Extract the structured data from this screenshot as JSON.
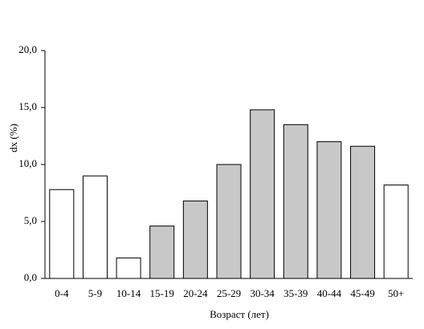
{
  "chart_data": {
    "type": "bar",
    "y_label": "dx (%)",
    "x_label": "Возраст (лет)",
    "categories": [
      "0-4",
      "5-9",
      "10-14",
      "15-19",
      "20-24",
      "25-29",
      "30-34",
      "35-39",
      "40-44",
      "45-49",
      "50+"
    ],
    "values": [
      7.8,
      9.0,
      1.8,
      4.6,
      6.8,
      10.0,
      14.8,
      13.5,
      12.0,
      11.6,
      8.2
    ],
    "colors": [
      "#ffffff",
      "#ffffff",
      "#ffffff",
      "#c8c8c8",
      "#c8c8c8",
      "#c8c8c8",
      "#c8c8c8",
      "#c8c8c8",
      "#c8c8c8",
      "#c8c8c8",
      "#ffffff"
    ],
    "ylim": [
      0,
      20
    ],
    "yticks": [
      {
        "value": 0,
        "label": "0,0"
      },
      {
        "value": 5,
        "label": "5,0"
      },
      {
        "value": 10,
        "label": "10,0"
      },
      {
        "value": 15,
        "label": "15,0"
      },
      {
        "value": 20,
        "label": "20,0"
      }
    ],
    "grid": false
  }
}
